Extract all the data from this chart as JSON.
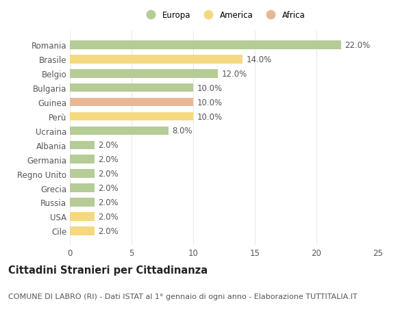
{
  "categories": [
    "Romania",
    "Brasile",
    "Belgio",
    "Bulgaria",
    "Guinea",
    "Perù",
    "Ucraina",
    "Albania",
    "Germania",
    "Regno Unito",
    "Grecia",
    "Russia",
    "USA",
    "Cile"
  ],
  "values": [
    22.0,
    14.0,
    12.0,
    10.0,
    10.0,
    10.0,
    8.0,
    2.0,
    2.0,
    2.0,
    2.0,
    2.0,
    2.0,
    2.0
  ],
  "colors": [
    "#b5cc96",
    "#f5d980",
    "#b5cc96",
    "#b5cc96",
    "#e8b896",
    "#f5d980",
    "#b5cc96",
    "#b5cc96",
    "#b5cc96",
    "#b5cc96",
    "#b5cc96",
    "#b5cc96",
    "#f5d980",
    "#f5d980"
  ],
  "legend_labels": [
    "Europa",
    "America",
    "Africa"
  ],
  "legend_colors": [
    "#b5cc96",
    "#f5d980",
    "#e8b896"
  ],
  "title": "Cittadini Stranieri per Cittadinanza",
  "subtitle": "COMUNE DI LABRO (RI) - Dati ISTAT al 1° gennaio di ogni anno - Elaborazione TUTTITALIA.IT",
  "xlim": [
    0,
    25
  ],
  "xticks": [
    0,
    5,
    10,
    15,
    20,
    25
  ],
  "background_color": "#ffffff",
  "grid_color": "#e8e8e8",
  "label_fontsize": 8.5,
  "title_fontsize": 10.5,
  "subtitle_fontsize": 8,
  "bar_height": 0.6
}
